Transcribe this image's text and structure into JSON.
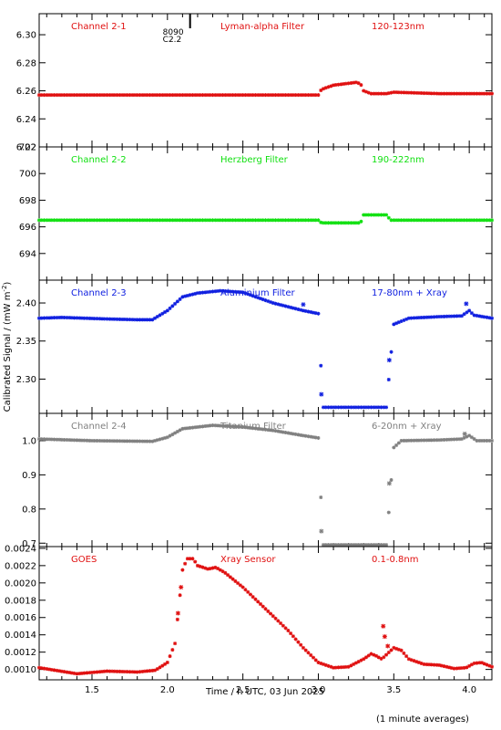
{
  "chart_data": {
    "type": "scatter",
    "xlabel": "Time / h UTC, 03 Jun 2025",
    "ylabel": "Calibrated Signal / (mW m",
    "ylabel_sup": "-2",
    "ylabel_close": ")",
    "footnote": "(1 minute averages)",
    "xlim": [
      1.15,
      4.15
    ],
    "xticks": [
      1.5,
      2.0,
      2.5,
      3.0,
      3.5,
      4.0
    ],
    "xtick_labels": [
      "1.5",
      "2.0",
      "2.5",
      "3.0",
      "3.5",
      "4.0"
    ],
    "marker": {
      "label1": "8090",
      "label2": "C2.2",
      "x": 2.15
    },
    "panels": [
      {
        "labels": [
          "Channel 2-1",
          "Lyman-alpha Filter",
          "120-123nm"
        ],
        "color": "#e01010",
        "ylim": [
          6.22,
          6.315
        ],
        "yticks": [
          6.22,
          6.24,
          6.26,
          6.28,
          6.3
        ],
        "ytick_labels": [
          "6.22",
          "6.24",
          "6.26",
          "6.28",
          "6.30"
        ],
        "curve": [
          [
            1.15,
            6.257
          ],
          [
            3.0,
            6.257
          ],
          [
            3.02,
            6.261
          ],
          [
            3.1,
            6.264
          ],
          [
            3.25,
            6.266
          ],
          [
            3.28,
            6.265
          ],
          [
            3.3,
            6.26
          ],
          [
            3.35,
            6.258
          ],
          [
            3.45,
            6.258
          ],
          [
            3.5,
            6.259
          ],
          [
            3.8,
            6.258
          ],
          [
            4.15,
            6.258
          ]
        ],
        "outliers": []
      },
      {
        "labels": [
          "Channel 2-2",
          "Herzberg Filter",
          "190-222nm"
        ],
        "color": "#10e010",
        "ylim": [
          692.0,
          702.0
        ],
        "yticks": [
          694,
          696,
          698,
          700,
          702
        ],
        "ytick_labels": [
          "694",
          "696",
          "698",
          "700",
          "702"
        ],
        "curve": [
          [
            1.15,
            696.5
          ],
          [
            3.0,
            696.5
          ],
          [
            3.02,
            696.3
          ],
          [
            3.28,
            696.3
          ],
          [
            3.3,
            696.9
          ],
          [
            3.45,
            696.9
          ],
          [
            3.48,
            696.5
          ],
          [
            4.15,
            696.5
          ]
        ],
        "outliers": []
      },
      {
        "labels": [
          "Channel 2-3",
          "Aluminium Filter",
          "17-80nm + Xray"
        ],
        "color": "#1020e0",
        "ylim": [
          2.255,
          2.43
        ],
        "yticks": [
          2.3,
          2.35,
          2.4
        ],
        "ytick_labels": [
          "2.30",
          "2.35",
          "2.40"
        ],
        "curve": [
          [
            1.15,
            2.38
          ],
          [
            1.3,
            2.381
          ],
          [
            1.6,
            2.379
          ],
          [
            1.8,
            2.378
          ],
          [
            1.9,
            2.378
          ],
          [
            2.0,
            2.39
          ],
          [
            2.1,
            2.408
          ],
          [
            2.2,
            2.413
          ],
          [
            2.35,
            2.416
          ],
          [
            2.5,
            2.414
          ],
          [
            2.7,
            2.4
          ],
          [
            2.9,
            2.39
          ],
          [
            3.0,
            2.386
          ],
          [
            3.03,
            2.263
          ],
          [
            3.45,
            2.263
          ],
          [
            3.5,
            2.372
          ],
          [
            3.6,
            2.38
          ],
          [
            3.8,
            2.382
          ],
          [
            3.95,
            2.383
          ],
          [
            4.0,
            2.39
          ],
          [
            4.03,
            2.384
          ],
          [
            4.15,
            2.38
          ]
        ],
        "outliers": [
          [
            3.02,
            2.28
          ],
          [
            3.47,
            2.325
          ],
          [
            3.98,
            2.399
          ],
          [
            2.9,
            2.398
          ]
        ]
      },
      {
        "labels": [
          "Channel 2-4",
          "Titanium Filter",
          "6-20nm + Xray"
        ],
        "color": "#808080",
        "ylim": [
          0.69,
          1.08
        ],
        "yticks": [
          0.7,
          0.8,
          0.9,
          1.0
        ],
        "ytick_labels": [
          "0.7",
          "0.8",
          "0.9",
          "1.0"
        ],
        "curve": [
          [
            1.15,
            1.005
          ],
          [
            1.5,
            1.0
          ],
          [
            1.9,
            0.998
          ],
          [
            2.0,
            1.01
          ],
          [
            2.1,
            1.035
          ],
          [
            2.3,
            1.045
          ],
          [
            2.5,
            1.04
          ],
          [
            2.7,
            1.03
          ],
          [
            2.9,
            1.015
          ],
          [
            3.0,
            1.008
          ],
          [
            3.03,
            0.695
          ],
          [
            3.45,
            0.695
          ],
          [
            3.5,
            0.98
          ],
          [
            3.55,
            1.0
          ],
          [
            3.8,
            1.002
          ],
          [
            3.95,
            1.005
          ],
          [
            4.0,
            1.015
          ],
          [
            4.05,
            1.0
          ],
          [
            4.15,
            1.0
          ]
        ],
        "outliers": [
          [
            3.02,
            0.735
          ],
          [
            3.47,
            0.875
          ],
          [
            3.97,
            1.02
          ]
        ]
      },
      {
        "labels": [
          "GOES",
          "Xray Sensor",
          "0.1-0.8nm"
        ],
        "color": "#e01010",
        "ylim": [
          0.00088,
          0.00242
        ],
        "yticks": [
          0.001,
          0.0012,
          0.0014,
          0.0016,
          0.0018,
          0.002,
          0.0022,
          0.0024
        ],
        "ytick_labels": [
          "0.0010",
          "0.0012",
          "0.0014",
          "0.0016",
          "0.0018",
          "0.0020",
          "0.0022",
          "0.0024"
        ],
        "curve": [
          [
            1.15,
            0.00102
          ],
          [
            1.4,
            0.00095
          ],
          [
            1.6,
            0.00098
          ],
          [
            1.8,
            0.00097
          ],
          [
            1.92,
            0.00099
          ],
          [
            2.0,
            0.00108
          ],
          [
            2.05,
            0.0013
          ],
          [
            2.08,
            0.0018
          ],
          [
            2.1,
            0.00215
          ],
          [
            2.13,
            0.00228
          ],
          [
            2.17,
            0.00228
          ],
          [
            2.2,
            0.0022
          ],
          [
            2.27,
            0.00216
          ],
          [
            2.32,
            0.00218
          ],
          [
            2.38,
            0.00212
          ],
          [
            2.5,
            0.00195
          ],
          [
            2.65,
            0.0017
          ],
          [
            2.8,
            0.00145
          ],
          [
            2.9,
            0.00125
          ],
          [
            3.0,
            0.00108
          ],
          [
            3.1,
            0.00102
          ],
          [
            3.2,
            0.00103
          ],
          [
            3.3,
            0.00112
          ],
          [
            3.35,
            0.00118
          ],
          [
            3.38,
            0.00116
          ],
          [
            3.42,
            0.00112
          ],
          [
            3.5,
            0.00125
          ],
          [
            3.55,
            0.00122
          ],
          [
            3.6,
            0.00112
          ],
          [
            3.7,
            0.00106
          ],
          [
            3.8,
            0.00105
          ],
          [
            3.9,
            0.00101
          ],
          [
            3.98,
            0.00102
          ],
          [
            4.03,
            0.00107
          ],
          [
            4.08,
            0.00108
          ],
          [
            4.15,
            0.00103
          ]
        ],
        "outliers": [
          [
            2.07,
            0.00165
          ],
          [
            2.09,
            0.00195
          ],
          [
            3.43,
            0.0015
          ],
          [
            3.44,
            0.00138
          ],
          [
            3.46,
            0.00127
          ]
        ]
      }
    ]
  }
}
